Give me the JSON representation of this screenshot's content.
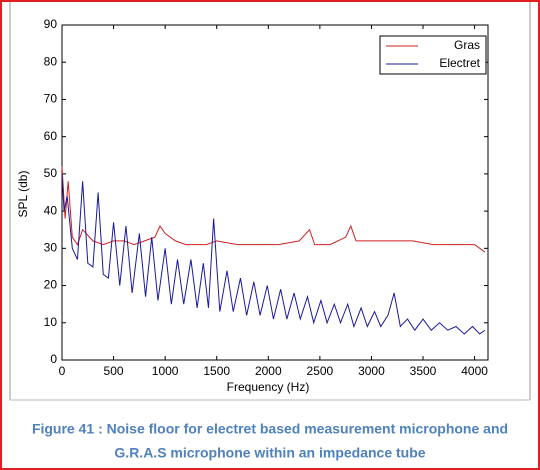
{
  "chart_data": {
    "type": "line",
    "xlabel": "Frequency (Hz)",
    "ylabel": "SPL (db)",
    "caption": [
      "Figure 41 : Noise floor for electret based measurement microphone and",
      "G.R.A.S microphone within an impedance tube"
    ],
    "xlim": [
      0,
      4130
    ],
    "xticks": [
      0,
      500,
      1000,
      1500,
      2000,
      2500,
      3000,
      3500,
      4000
    ],
    "ylim": [
      0,
      90
    ],
    "yticks": [
      0,
      10,
      20,
      30,
      40,
      50,
      60,
      70,
      80,
      90
    ],
    "legend": "northeast",
    "series": [
      {
        "name": "Gras",
        "color": "#d02020",
        "x": [
          0,
          30,
          60,
          100,
          150,
          200,
          300,
          400,
          500,
          600,
          700,
          800,
          900,
          950,
          1000,
          1100,
          1200,
          1300,
          1400,
          1500,
          1700,
          1900,
          2100,
          2300,
          2400,
          2450,
          2600,
          2750,
          2800,
          2850,
          3000,
          3200,
          3400,
          3600,
          3800,
          4000,
          4100
        ],
        "values": [
          52,
          38,
          48,
          33,
          31,
          35,
          32,
          31,
          32,
          32,
          31,
          32,
          33,
          36,
          34,
          32,
          31,
          31,
          31,
          32,
          31,
          31,
          31,
          32,
          35,
          31,
          31,
          33,
          36,
          32,
          32,
          32,
          32,
          31,
          31,
          31,
          29
        ]
      },
      {
        "name": "Electret",
        "color": "#1a1a9a",
        "x": [
          0,
          20,
          50,
          100,
          150,
          200,
          250,
          300,
          350,
          400,
          450,
          500,
          560,
          620,
          680,
          750,
          810,
          870,
          930,
          1000,
          1060,
          1120,
          1180,
          1250,
          1310,
          1370,
          1420,
          1470,
          1530,
          1600,
          1660,
          1730,
          1790,
          1860,
          1920,
          1990,
          2050,
          2120,
          2180,
          2250,
          2310,
          2380,
          2440,
          2510,
          2570,
          2640,
          2700,
          2770,
          2830,
          2900,
          2960,
          3030,
          3090,
          3160,
          3220,
          3280,
          3350,
          3420,
          3500,
          3580,
          3660,
          3740,
          3820,
          3900,
          3980,
          4050,
          4100
        ],
        "values": [
          50,
          40,
          44,
          30,
          27,
          48,
          26,
          25,
          45,
          23,
          22,
          37,
          20,
          36,
          18,
          34,
          17,
          33,
          16,
          30,
          15,
          27,
          15,
          27,
          14,
          26,
          14,
          38,
          13,
          24,
          13,
          22,
          12,
          21,
          12,
          20,
          11,
          19,
          11,
          18,
          11,
          17,
          10,
          16,
          10,
          15,
          10,
          15,
          9,
          14,
          9,
          13,
          9,
          12,
          18,
          9,
          11,
          8,
          11,
          8,
          10,
          8,
          9,
          7,
          9,
          7,
          8
        ]
      }
    ]
  }
}
